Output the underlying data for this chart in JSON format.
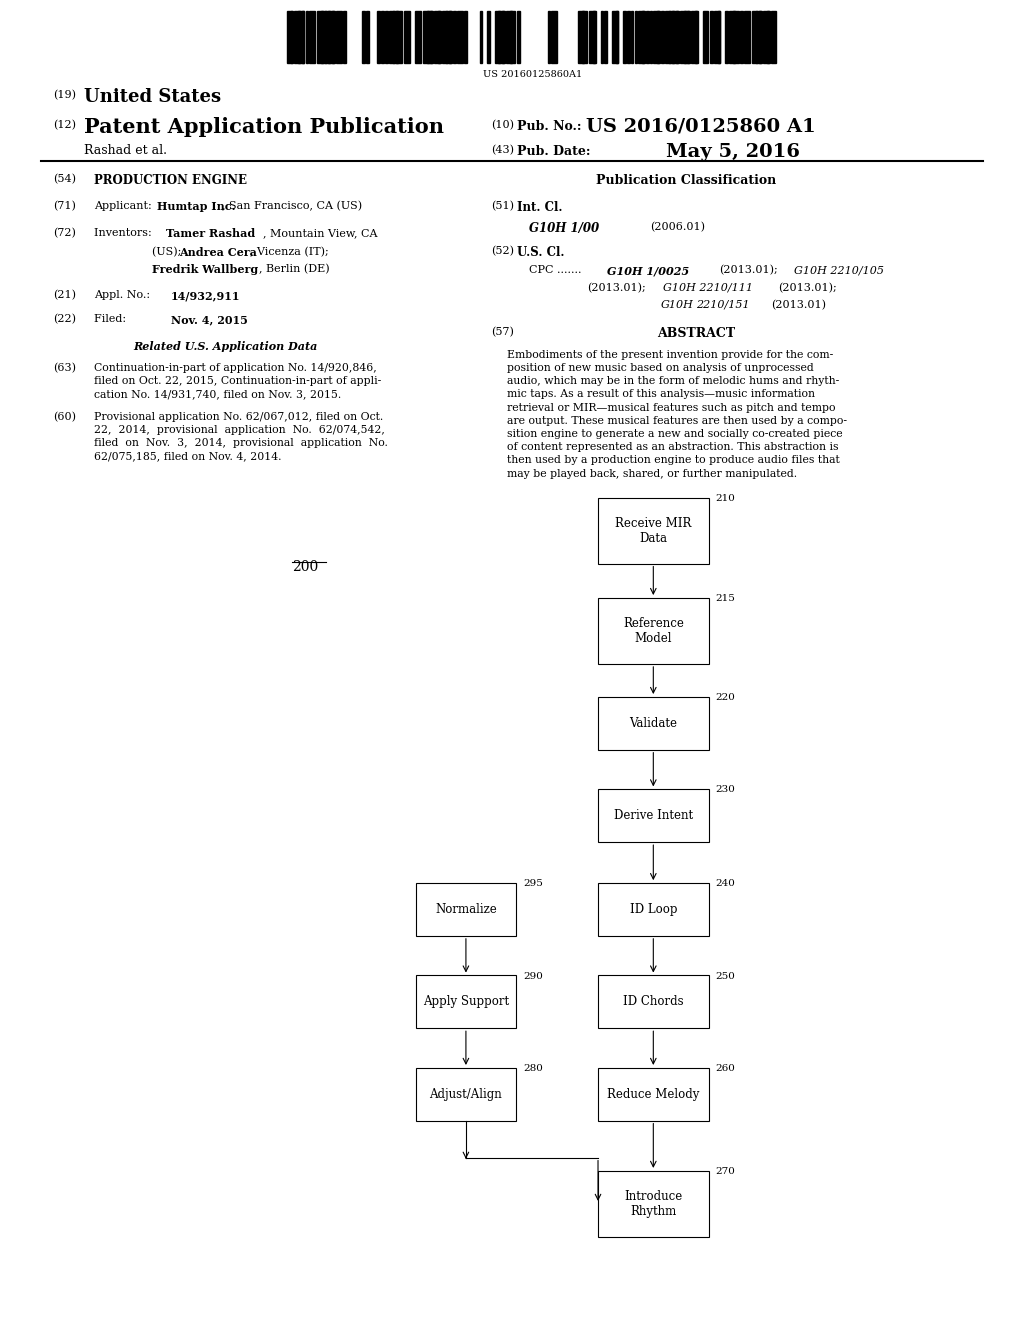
{
  "background_color": "#ffffff",
  "barcode_text": "US 20160125860A1",
  "patent_number": "US 2016/0125860 A1",
  "pub_date": "May 5, 2016",
  "country": "United States",
  "label_19": "(19)",
  "label_12": "(12)",
  "pub_type": "Patent Application Publication",
  "author": "Rashad et al.",
  "label_10": "(10)",
  "label_43": "(43)",
  "pub_no_label": "Pub. No.:",
  "pub_date_label": "Pub. Date:",
  "title": "PRODUCTION ENGINE",
  "pub_class_header": "Publication Classification",
  "abstract_header": "ABSTRACT",
  "abstract_text": "Embodiments of the present invention provide for the com-\nposition of new music based on analysis of unprocessed\naudio, which may be in the form of melodic hums and rhyth-\nmic taps. As a result of this analysis—music information\nretrieval or MIR—musical features such as pitch and tempo\nare output. These musical features are then used by a compo-\nsition engine to generate a new and socially co-created piece\nof content represented as an abstraction. This abstraction is\nthen used by a production engine to produce audio files that\nmay be played back, shared, or further manipulated.",
  "diagram_label": "200"
}
